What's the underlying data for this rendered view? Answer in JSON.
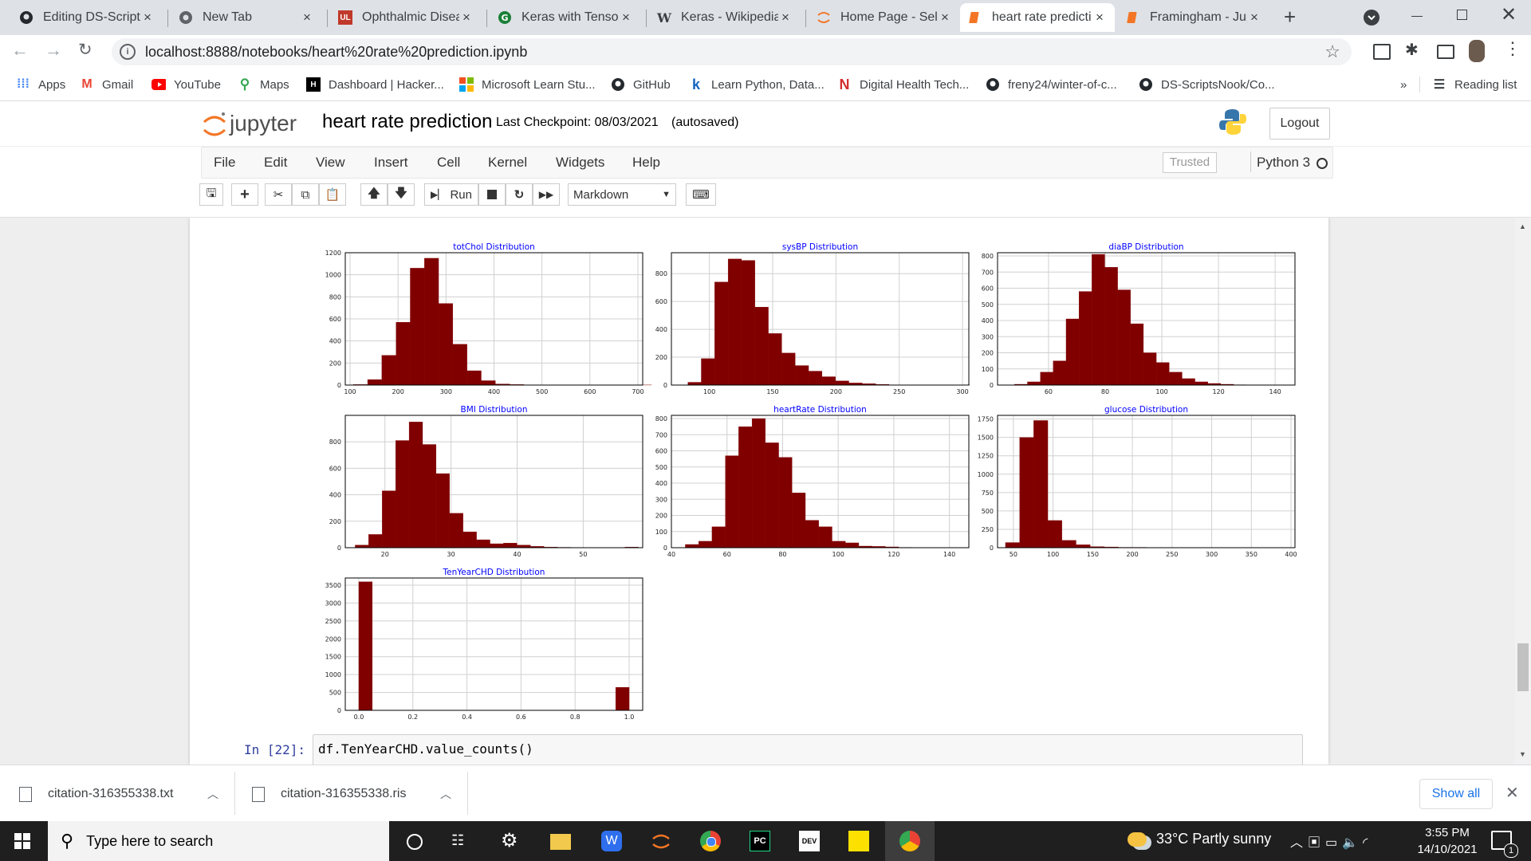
{
  "browser": {
    "tabs": [
      {
        "label": "Editing DS-Scripts",
        "icon": "github-icon",
        "close": "×"
      },
      {
        "label": "New Tab",
        "icon": "chrome-icon",
        "close": "×"
      },
      {
        "label": "Ophthalmic Disea",
        "icon": "ul-icon",
        "close": "×"
      },
      {
        "label": "Keras with Tensor",
        "icon": "keras-icon",
        "close": "×"
      },
      {
        "label": "Keras - Wikipedia",
        "icon": "wikipedia-icon",
        "close": "×"
      },
      {
        "label": "Home Page - Sele",
        "icon": "jupyter-icon",
        "close": "×"
      },
      {
        "label": "heart rate predicti",
        "icon": "notebook-icon",
        "close": "×"
      },
      {
        "label": "Framingham - Jup",
        "icon": "notebook-icon",
        "close": "×"
      }
    ],
    "new_tab": "+",
    "url": "localhost:8888/notebooks/heart%20rate%20prediction.ipynb",
    "bookmarks": [
      {
        "label": "Apps",
        "icon": "apps-icon"
      },
      {
        "label": "Gmail",
        "icon": "gmail-icon"
      },
      {
        "label": "YouTube",
        "icon": "youtube-icon"
      },
      {
        "label": "Maps",
        "icon": "maps-icon"
      },
      {
        "label": "Dashboard | Hacker...",
        "icon": "hackerrank-icon"
      },
      {
        "label": "Microsoft Learn Stu...",
        "icon": "microsoft-icon"
      },
      {
        "label": "GitHub",
        "icon": "github-icon"
      },
      {
        "label": "Learn Python, Data...",
        "icon": "k-icon"
      },
      {
        "label": "Digital Health Tech...",
        "icon": "n-icon"
      },
      {
        "label": "freny24/winter-of-c...",
        "icon": "github-icon"
      },
      {
        "label": "DS-ScriptsNook/Co...",
        "icon": "github-icon"
      }
    ],
    "more_bookmarks": "»",
    "reading_list": "Reading list"
  },
  "jupyter": {
    "logo_text": "jupyter",
    "notebook_name": "heart rate prediction",
    "checkpoint": "Last Checkpoint: 08/03/2021",
    "autosaved": "(autosaved)",
    "logout": "Logout",
    "menu": [
      "File",
      "Edit",
      "View",
      "Insert",
      "Cell",
      "Kernel",
      "Widgets",
      "Help"
    ],
    "trusted": "Trusted",
    "kernel": "Python 3",
    "run_label": "Run",
    "cell_type": "Markdown",
    "cell_prompt": "In [22]:",
    "cell_code": "df.TenYearCHD.value_counts()"
  },
  "chart_data": [
    {
      "type": "bar",
      "title": "",
      "x_ticks": [
        "0.0",
        "0.2",
        "0.4",
        "0.6",
        "0.8",
        "1.0"
      ],
      "partial": true
    },
    {
      "type": "bar",
      "title": "",
      "x_ticks": [
        "0.0",
        "0.2",
        "0.4",
        "0.6",
        "0.8",
        "1.0"
      ],
      "partial": true
    },
    {
      "type": "bar",
      "title": "",
      "x_ticks": [
        "0.0",
        "0.2",
        "0.4",
        "0.6",
        "0.8",
        "1.0"
      ],
      "partial": true
    },
    {
      "type": "bar",
      "title": "totChol Distribution",
      "xlim": [
        90,
        710
      ],
      "ylim": [
        0,
        1200
      ],
      "x_ticks": [
        100,
        200,
        300,
        400,
        500,
        600,
        700
      ],
      "y_ticks": [
        0,
        200,
        400,
        600,
        800,
        1000,
        1200
      ],
      "bin_start": 107,
      "bin_width": 29.6,
      "values": [
        5,
        50,
        270,
        570,
        1060,
        1150,
        740,
        370,
        130,
        40,
        10,
        5,
        2,
        1,
        0,
        0,
        0,
        0,
        0,
        0,
        1
      ],
      "color": "#800000"
    },
    {
      "type": "bar",
      "title": "sysBP Distribution",
      "xlim": [
        70,
        305
      ],
      "ylim": [
        0,
        950
      ],
      "x_ticks": [
        100,
        150,
        200,
        250,
        300
      ],
      "y_ticks": [
        0,
        200,
        400,
        600,
        800
      ],
      "bin_start": 83,
      "bin_width": 10.6,
      "values": [
        20,
        190,
        740,
        905,
        895,
        560,
        370,
        230,
        140,
        100,
        60,
        30,
        15,
        10,
        5,
        2,
        1,
        1,
        0,
        0,
        1
      ],
      "color": "#800000"
    },
    {
      "type": "bar",
      "title": "diaBP Distribution",
      "xlim": [
        42,
        147
      ],
      "ylim": [
        0,
        820
      ],
      "x_ticks": [
        60,
        80,
        100,
        120,
        140
      ],
      "y_ticks": [
        0,
        100,
        200,
        300,
        400,
        500,
        600,
        700,
        800
      ],
      "bin_start": 48,
      "bin_width": 4.55,
      "values": [
        5,
        20,
        80,
        150,
        410,
        580,
        810,
        730,
        590,
        380,
        200,
        140,
        80,
        40,
        20,
        10,
        5,
        2,
        1,
        0,
        1
      ],
      "color": "#800000"
    },
    {
      "type": "bar",
      "title": "BMI Distribution",
      "xlim": [
        14,
        59
      ],
      "ylim": [
        0,
        1000
      ],
      "x_ticks": [
        20,
        30,
        40,
        50
      ],
      "y_ticks": [
        0,
        200,
        400,
        600,
        800
      ],
      "bin_start": 15.5,
      "bin_width": 2.04,
      "values": [
        20,
        100,
        430,
        810,
        950,
        780,
        560,
        260,
        120,
        60,
        30,
        35,
        20,
        10,
        5,
        3,
        2,
        1,
        1,
        0,
        5
      ],
      "color": "#800000"
    },
    {
      "type": "bar",
      "title": "heartRate Distribution",
      "xlim": [
        40,
        147
      ],
      "ylim": [
        0,
        820
      ],
      "x_ticks": [
        40,
        60,
        80,
        100,
        120,
        140
      ],
      "y_ticks": [
        0,
        100,
        200,
        300,
        400,
        500,
        600,
        700,
        800
      ],
      "bin_start": 45,
      "bin_width": 4.8,
      "values": [
        20,
        40,
        130,
        570,
        750,
        800,
        650,
        560,
        340,
        170,
        130,
        40,
        30,
        10,
        8,
        5,
        2,
        1,
        1,
        0,
        1
      ],
      "color": "#800000"
    },
    {
      "type": "bar",
      "title": "glucose Distribution",
      "xlim": [
        30,
        405
      ],
      "ylim": [
        0,
        1800
      ],
      "x_ticks": [
        50,
        100,
        150,
        200,
        250,
        300,
        350,
        400
      ],
      "y_ticks": [
        0,
        250,
        500,
        750,
        1000,
        1250,
        1500,
        1750
      ],
      "bin_start": 40,
      "bin_width": 17.8,
      "values": [
        70,
        1500,
        1730,
        370,
        100,
        40,
        15,
        10,
        5,
        5,
        3,
        3,
        2,
        2,
        1,
        1,
        1,
        1,
        0,
        1
      ],
      "color": "#800000"
    },
    {
      "type": "bar",
      "title": "TenYearCHD Distribution",
      "xlim": [
        -0.05,
        1.05
      ],
      "ylim": [
        0,
        3700
      ],
      "x_ticks": [
        "0.0",
        "0.2",
        "0.4",
        "0.6",
        "0.8",
        "1.0"
      ],
      "y_ticks": [
        0,
        500,
        1000,
        1500,
        2000,
        2500,
        3000,
        3500
      ],
      "bin_start": 0,
      "bin_width": 0.05,
      "values": [
        3594,
        0,
        0,
        0,
        0,
        0,
        0,
        0,
        0,
        0,
        0,
        0,
        0,
        0,
        0,
        0,
        0,
        0,
        0,
        644
      ],
      "color": "#800000"
    }
  ],
  "downloads": [
    {
      "name": "citation-316355338.txt",
      "icon": "text-file-icon"
    },
    {
      "name": "citation-316355338.ris",
      "icon": "file-icon"
    }
  ],
  "show_all": "Show all",
  "taskbar": {
    "search_placeholder": "Type here to search",
    "weather": "33°C  Partly sunny",
    "time": "3:55 PM",
    "date": "14/10/2021",
    "notifications": "1"
  }
}
